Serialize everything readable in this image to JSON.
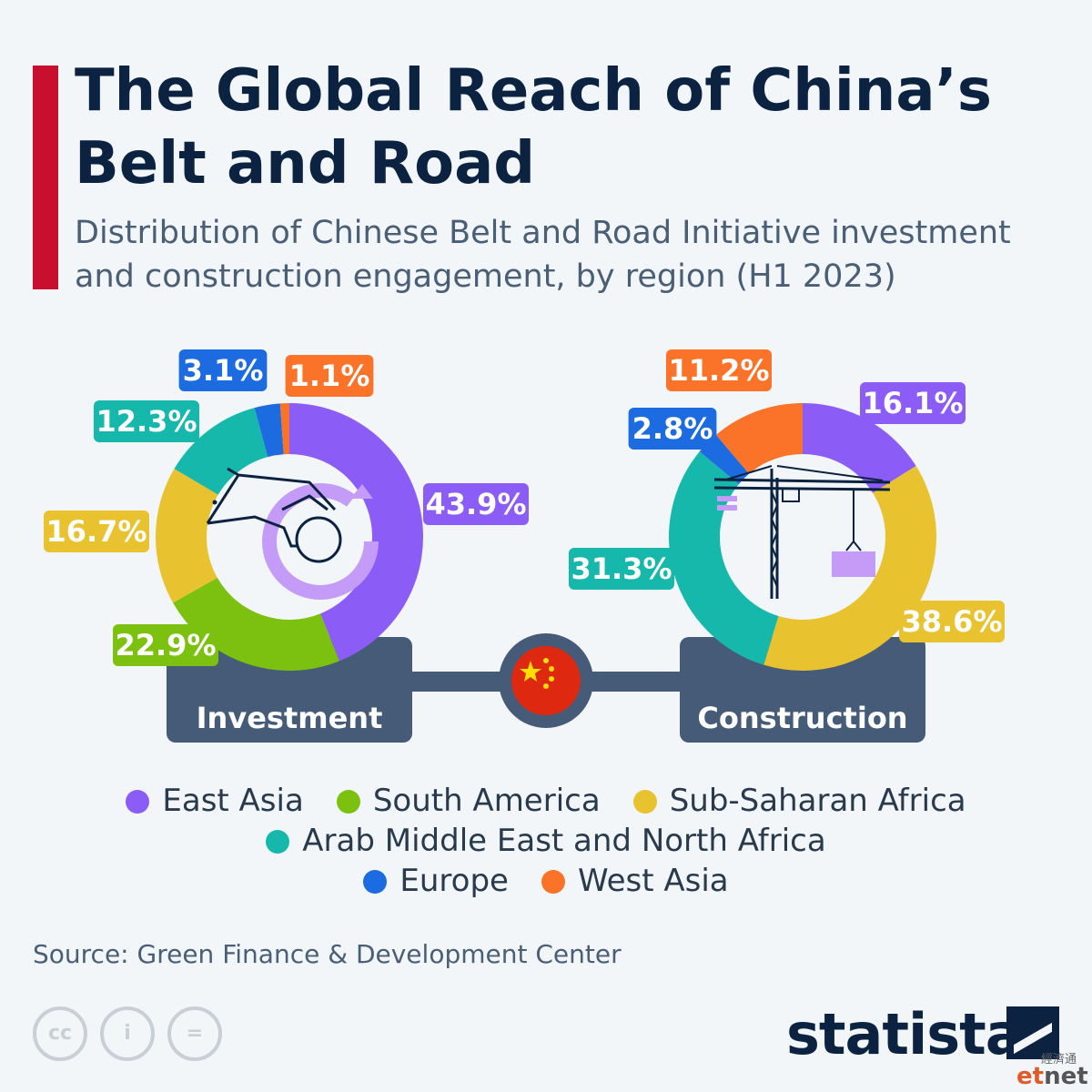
{
  "header": {
    "title": "The Global Reach of China’s Belt and Road",
    "subtitle": "Distribution of Chinese Belt and Road Initiative investment and construction engagement, by region (H1 2023)"
  },
  "colors": {
    "East Asia": "#8b5cf6",
    "South America": "#7cc110",
    "Sub-Saharan Africa": "#e8c22f",
    "Arab Middle East and North Africa": "#17b8ac",
    "Europe": "#1d6be0",
    "West Asia": "#fa7328",
    "panel": "#455b78",
    "accent": "#c8102e"
  },
  "chart_data": [
    {
      "type": "pie",
      "title": "Investment",
      "categories": [
        "East Asia",
        "South America",
        "Sub-Saharan Africa",
        "Arab Middle East and North Africa",
        "Europe",
        "West Asia"
      ],
      "values": [
        43.9,
        22.9,
        16.7,
        12.3,
        3.1,
        1.1
      ],
      "labels": [
        "43.9%",
        "22.9%",
        "16.7%",
        "12.3%",
        "3.1%",
        "1.1%"
      ],
      "icon": "hand-coin-icon"
    },
    {
      "type": "pie",
      "title": "Construction",
      "categories": [
        "East Asia",
        "Sub-Saharan Africa",
        "Arab Middle East and North Africa",
        "Europe",
        "West Asia"
      ],
      "values": [
        16.1,
        38.6,
        31.3,
        2.8,
        11.2
      ],
      "labels": [
        "16.1%",
        "38.6%",
        "31.3%",
        "2.8%",
        "11.2%"
      ],
      "icon": "crane-icon"
    }
  ],
  "connector_icon": "china-flag-icon",
  "legend": {
    "rows": [
      [
        "East Asia",
        "South America",
        "Sub-Saharan Africa"
      ],
      [
        "Arab Middle East and North Africa"
      ],
      [
        "Europe",
        "West Asia"
      ]
    ]
  },
  "footer": {
    "source": "Source: Green Finance & Development Center",
    "cc_labels": [
      "cc",
      "i",
      "="
    ],
    "brand": "statista",
    "watermark_cn": "經濟通",
    "watermark_et": "et",
    "watermark_net": "net"
  }
}
